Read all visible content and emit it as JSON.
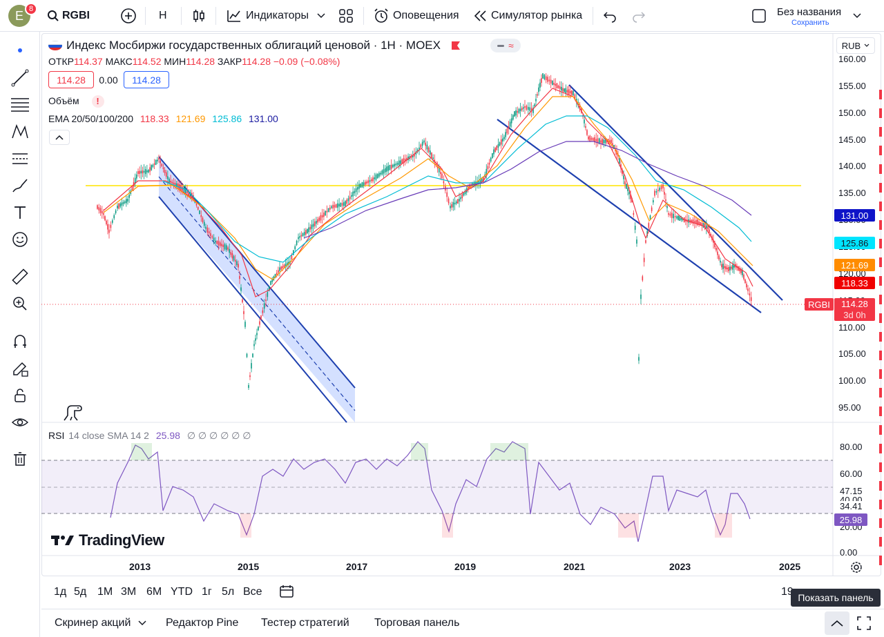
{
  "topbar": {
    "avatar_letter": "E",
    "avatar_badge": "8",
    "symbol": "RGBI",
    "interval": "H",
    "indicators_label": "Индикаторы",
    "alerts_label": "Оповещения",
    "replay_label": "Симулятор рынка",
    "layout_name": "Без названия",
    "save_label": "Сохранить"
  },
  "legend": {
    "title": "Индекс Мосбиржи государственных облигаций ценовой · 1H · MOEX",
    "ohlc": {
      "o_label": "ОТКР",
      "o": "114.37",
      "h_label": "МАКС",
      "h": "114.52",
      "l_label": "МИН",
      "l": "114.28",
      "c_label": "ЗАКР",
      "c": "114.28",
      "change": "−0.09 (−0.08%)"
    },
    "sell_price": "114.28",
    "spread": "0.00",
    "buy_price": "114.28",
    "volume_label": "Объём",
    "ema_label": "EMA 20/50/100/200",
    "ema_values": [
      "118.33",
      "121.69",
      "125.86",
      "131.00"
    ],
    "currency": "RUB"
  },
  "price_scale": {
    "ticks": [
      "160.00",
      "155.00",
      "150.00",
      "145.00",
      "140.00",
      "135.00",
      "130.00",
      "125.00",
      "120.00",
      "115.00",
      "110.00",
      "105.00",
      "100.00",
      "95.00"
    ],
    "labels": [
      {
        "text": "131.00",
        "color": "#0f14c8"
      },
      {
        "text": "125.86",
        "color": "#00e5ff"
      },
      {
        "text": "121.69",
        "color": "#ff8c00"
      },
      {
        "text": "118.33",
        "color": "#f00000"
      }
    ],
    "symbol_tag": "RGBI",
    "last_price": "114.28",
    "countdown": "3d 0h"
  },
  "rsi": {
    "label": "RSI",
    "params": "14 close SMA 14 2",
    "value": "25.98",
    "placeholders": "∅ ∅ ∅ ∅ ∅ ∅",
    "ticks": [
      "80.00",
      "60.00",
      "47.15",
      "40.00",
      "34.41",
      "20.00",
      "0.00"
    ],
    "current": "25.98"
  },
  "time_axis": [
    "2013",
    "2015",
    "2017",
    "2019",
    "2021",
    "2023",
    "2025"
  ],
  "watermark": "TradingView",
  "range_buttons": [
    "1д",
    "5д",
    "1М",
    "3М",
    "6М",
    "YTD",
    "1г",
    "5л",
    "Все"
  ],
  "range_right": "19",
  "tooltip": "Показать панель",
  "bottom_tabs": [
    "Скринер акций",
    "Редактор Pine",
    "Тестер стратегий",
    "Торговая панель"
  ],
  "colors": {
    "ema20": "#f23645",
    "ema50": "#ff9800",
    "ema100": "#00bcd4",
    "ema200": "#673ab7",
    "horizontal_line": "#ffeb3b",
    "channel": "#1e40af",
    "rsi_line": "#7e57c2",
    "up": "#089981",
    "down": "#f23645"
  }
}
